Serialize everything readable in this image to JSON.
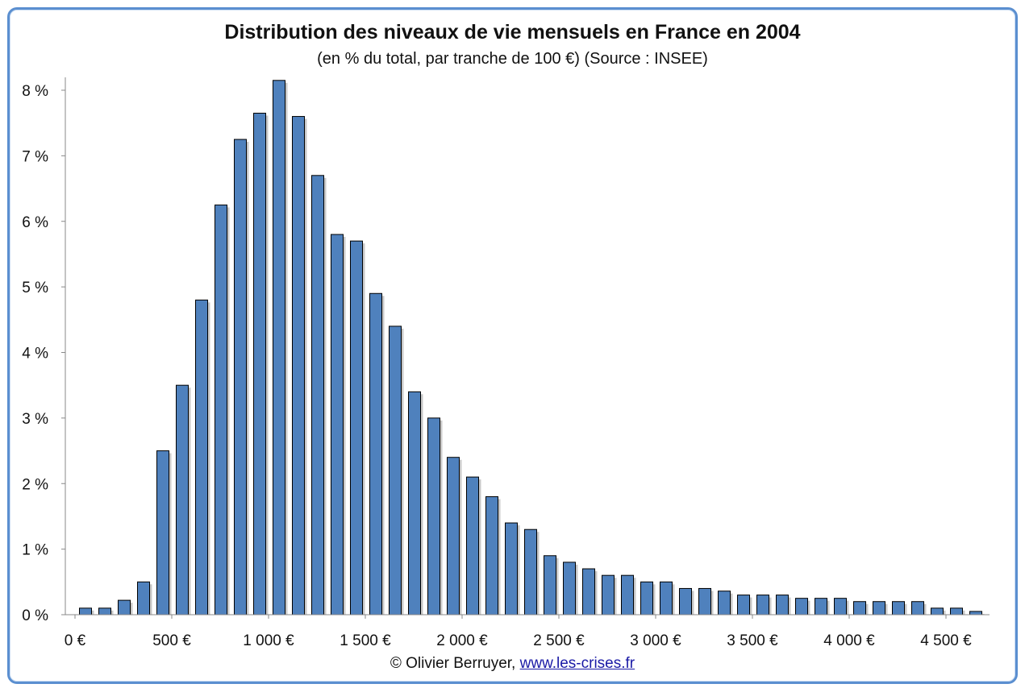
{
  "chart_data": {
    "type": "bar",
    "title": "Distribution des niveaux de vie mensuels en France en 2004",
    "subtitle": "(en % du total, par tranche de 100 €) (Source : INSEE)",
    "xlabel": "",
    "ylabel": "",
    "x_start": 0,
    "x_step": 100,
    "values": [
      0.1,
      0.1,
      0.22,
      0.5,
      2.5,
      3.5,
      4.8,
      6.25,
      7.25,
      7.65,
      8.15,
      7.6,
      6.7,
      5.8,
      5.7,
      4.9,
      4.4,
      3.4,
      3.0,
      2.4,
      2.1,
      1.8,
      1.4,
      1.3,
      0.9,
      0.8,
      0.7,
      0.6,
      0.6,
      0.5,
      0.5,
      0.4,
      0.4,
      0.36,
      0.3,
      0.3,
      0.3,
      0.25,
      0.25,
      0.25,
      0.2,
      0.2,
      0.2,
      0.2,
      0.1,
      0.1,
      0.05
    ],
    "ylim": [
      0,
      8
    ],
    "yticks": [
      {
        "value": 0,
        "label": "0 %"
      },
      {
        "value": 1,
        "label": "1 %"
      },
      {
        "value": 2,
        "label": "2 %"
      },
      {
        "value": 3,
        "label": "3 %"
      },
      {
        "value": 4,
        "label": "4 %"
      },
      {
        "value": 5,
        "label": "5 %"
      },
      {
        "value": 6,
        "label": "6 %"
      },
      {
        "value": 7,
        "label": "7 %"
      },
      {
        "value": 8,
        "label": "8 %"
      }
    ],
    "xticks": [
      {
        "value": 0,
        "label": "0 €"
      },
      {
        "value": 500,
        "label": "500 €"
      },
      {
        "value": 1000,
        "label": "1 000 €"
      },
      {
        "value": 1500,
        "label": "1 500 €"
      },
      {
        "value": 2000,
        "label": "2 000 €"
      },
      {
        "value": 2500,
        "label": "2 500 €"
      },
      {
        "value": 3000,
        "label": "3 000 €"
      },
      {
        "value": 3500,
        "label": "3 500 €"
      },
      {
        "value": 4000,
        "label": "4 000 €"
      },
      {
        "value": 4500,
        "label": "4 500 €"
      }
    ],
    "grid": false,
    "bar_color": "#4f81bd",
    "bar_edge_color": "#000000"
  },
  "credit": {
    "author": "© Olivier Berruyer,",
    "link": "www.les-crises.fr"
  },
  "colors": {
    "frame": "#5b8fd0"
  }
}
